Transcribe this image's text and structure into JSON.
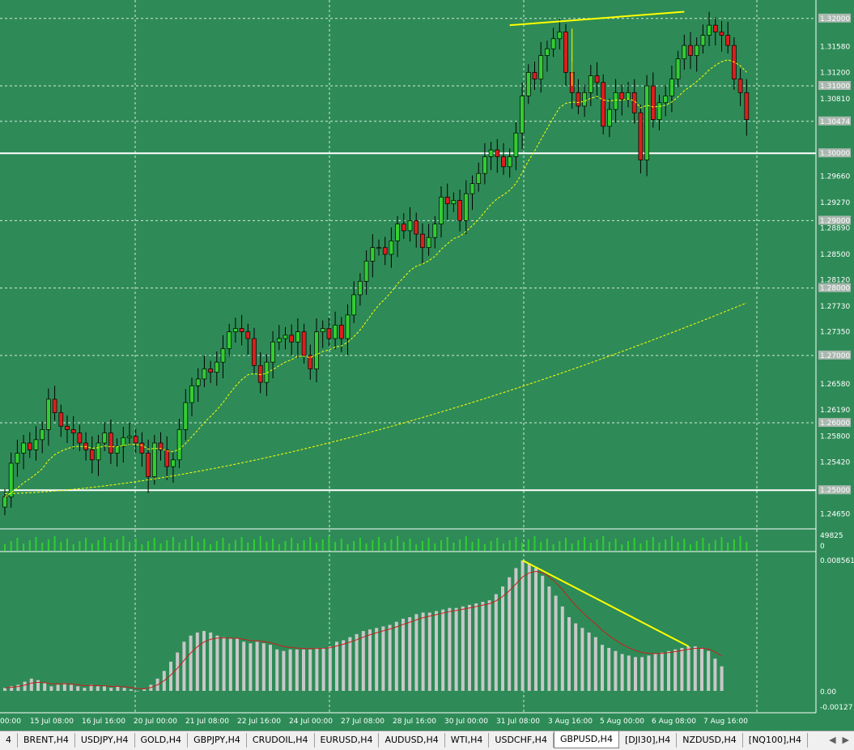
{
  "colors": {
    "background": "#2e8b57",
    "grid": "#ffffff",
    "bull_candle": "#32cd32",
    "bear_candle": "#dc1e1e",
    "ma": "#ffff00",
    "macd_hist": "#c8c8c8",
    "macd_signal": "#c81e1e",
    "trendline": "#ffff00",
    "level": "#ffffff"
  },
  "chart_data": {
    "type": "candlestick",
    "symbol": "GBPUSD",
    "timeframe": "H4",
    "price_labels": [
      "1.31580",
      "1.31200",
      "1.30810",
      "1.29660",
      "1.29270",
      "1.28890",
      "1.28500",
      "1.28120",
      "1.27730",
      "1.27350",
      "1.26580",
      "1.26190",
      "1.25800",
      "1.25420",
      "1.24650"
    ],
    "highlight_levels": [
      "1.32000",
      "1.31000",
      "1.30474",
      "1.30000",
      "1.29000",
      "1.28000",
      "1.27000",
      "1.26000",
      "1.25000"
    ],
    "white_levels": [
      1.3,
      1.25
    ],
    "ylim": [
      1.2445,
      1.3225
    ],
    "x_labels": [
      "00:00",
      "15 Jul 08:00",
      "16 Jul 16:00",
      "20 Jul 00:00",
      "21 Jul 08:00",
      "22 Jul 16:00",
      "24 Jul 00:00",
      "27 Jul 08:00",
      "28 Jul 16:00",
      "30 Jul 00:00",
      "31 Jul 08:00",
      "3 Aug 16:00",
      "5 Aug 00:00",
      "6 Aug 08:00",
      "7 Aug 16:00"
    ],
    "closes": [
      1.249,
      1.254,
      1.2555,
      1.257,
      1.256,
      1.2575,
      1.259,
      1.2635,
      1.2615,
      1.2595,
      1.259,
      1.2585,
      1.257,
      1.256,
      1.2545,
      1.257,
      1.2585,
      1.2555,
      1.2565,
      1.2578,
      1.258,
      1.257,
      1.2555,
      1.252,
      1.257,
      1.256,
      1.2535,
      1.2545,
      1.259,
      1.263,
      1.2655,
      1.2665,
      1.268,
      1.2675,
      1.269,
      1.271,
      1.2735,
      1.274,
      1.2735,
      1.2725,
      1.2685,
      1.266,
      1.269,
      1.272,
      1.2725,
      1.273,
      1.272,
      1.2735,
      1.27,
      1.268,
      1.2735,
      1.274,
      1.2725,
      1.2745,
      1.2725,
      1.276,
      1.279,
      1.281,
      1.284,
      1.286,
      1.286,
      1.285,
      1.287,
      1.2895,
      1.2885,
      1.29,
      1.288,
      1.286,
      1.2875,
      1.2895,
      1.2935,
      1.2925,
      1.293,
      1.29,
      1.294,
      1.2955,
      1.297,
      1.2995,
      1.3005,
      1.2995,
      1.298,
      1.2995,
      1.303,
      1.3085,
      1.312,
      1.311,
      1.3145,
      1.3155,
      1.317,
      1.318,
      1.312,
      1.309,
      1.307,
      1.309,
      1.3115,
      1.3105,
      1.304,
      1.3065,
      1.309,
      1.308,
      1.309,
      1.306,
      1.299,
      1.31,
      1.305,
      1.3075,
      1.3085,
      1.311,
      1.314,
      1.316,
      1.3145,
      1.316,
      1.3175,
      1.319,
      1.318,
      1.3175,
      1.316,
      1.311,
      1.309,
      1.305
    ],
    "ma_fast_end": 1.3105,
    "ma_slow_end": 1.2778,
    "macd": {
      "max_label": "0.008561",
      "zero_label": "0.00",
      "min_label": "-0.00127",
      "hist": [
        0.0002,
        0.0003,
        0.0004,
        0.0006,
        0.0008,
        0.0007,
        0.0005,
        0.0003,
        0.0004,
        0.0005,
        0.0004,
        0.0003,
        0.0002,
        0.0004,
        0.0003,
        0.0003,
        0.0002,
        0.0003,
        0.0002,
        0.0001,
        0.0,
        0.0001,
        0.0004,
        0.0008,
        0.0013,
        0.0019,
        0.0025,
        0.0032,
        0.0036,
        0.0038,
        0.0039,
        0.0038,
        0.0036,
        0.0035,
        0.0034,
        0.0034,
        0.0032,
        0.0031,
        0.0032,
        0.0031,
        0.003,
        0.0027,
        0.0026,
        0.0027,
        0.0027,
        0.0027,
        0.0027,
        0.0028,
        0.0028,
        0.0029,
        0.0032,
        0.0033,
        0.0035,
        0.0037,
        0.0039,
        0.004,
        0.0041,
        0.0042,
        0.0043,
        0.0045,
        0.0047,
        0.0048,
        0.005,
        0.0051,
        0.0051,
        0.0052,
        0.0053,
        0.0054,
        0.0054,
        0.0055,
        0.0056,
        0.0057,
        0.0058,
        0.0059,
        0.0063,
        0.0068,
        0.0074,
        0.008,
        0.0085,
        0.0083,
        0.008,
        0.0075,
        0.0068,
        0.0062,
        0.0055,
        0.0048,
        0.0044,
        0.0041,
        0.0038,
        0.0035,
        0.003,
        0.0028,
        0.0026,
        0.0024,
        0.0023,
        0.0022,
        0.0022,
        0.0023,
        0.0024,
        0.0025,
        0.0026,
        0.0027,
        0.0028,
        0.0029,
        0.0029,
        0.0028,
        0.0026,
        0.0021,
        0.0016
      ]
    }
  },
  "volume": {
    "label": "49825",
    "zero": "0"
  },
  "tabs": [
    "4",
    "BRENT,H4",
    "USDJPY,H4",
    "GOLD,H4",
    "GBPJPY,H4",
    "CRUDOIL,H4",
    "EURUSD,H4",
    "AUDUSD,H4",
    "WTI,H4",
    "USDCHF,H4",
    "GBPUSD,H4",
    "[DJI30],H4",
    "NZDUSD,H4",
    "[NQ100],H4"
  ],
  "active_tab": "GBPUSD,H4",
  "tab_arrows": [
    "◀",
    "▶"
  ]
}
